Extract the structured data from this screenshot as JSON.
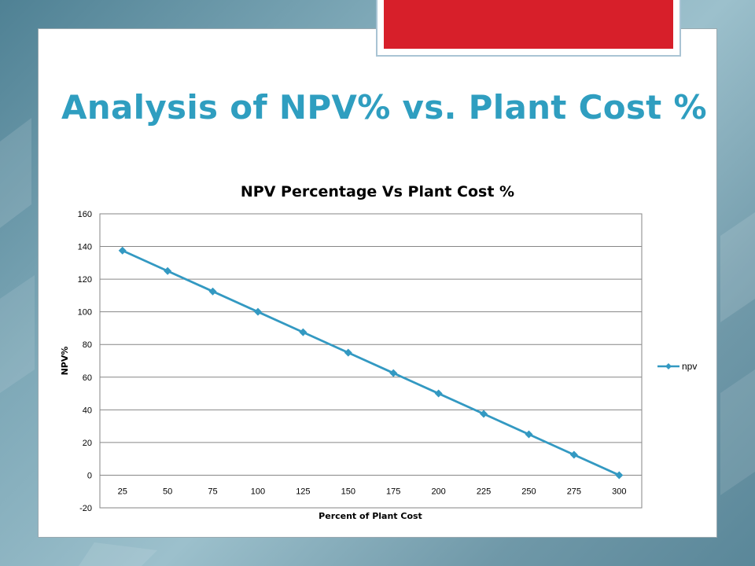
{
  "slide": {
    "title": "Analysis of NPV% vs. Plant Cost %"
  },
  "colors": {
    "accent": "#2f9ec0",
    "series": "#3399c2",
    "banner": "#d71f2a"
  },
  "chart_data": {
    "type": "line",
    "title": "NPV Percentage Vs Plant Cost %",
    "xlabel": "Percent of Plant Cost",
    "ylabel": "NPV%",
    "categories": [
      "25",
      "50",
      "75",
      "100",
      "125",
      "150",
      "175",
      "200",
      "225",
      "250",
      "275",
      "300"
    ],
    "series": [
      {
        "name": "npv",
        "values": [
          137.5,
          125,
          112.5,
          100,
          87.5,
          75,
          62.5,
          50,
          37.5,
          25,
          12.5,
          0
        ],
        "marker": "diamond"
      }
    ],
    "ylim": [
      -20,
      160
    ],
    "yticks": [
      -20,
      0,
      20,
      40,
      60,
      80,
      100,
      120,
      140,
      160
    ],
    "grid": true,
    "legend_position": "right"
  }
}
